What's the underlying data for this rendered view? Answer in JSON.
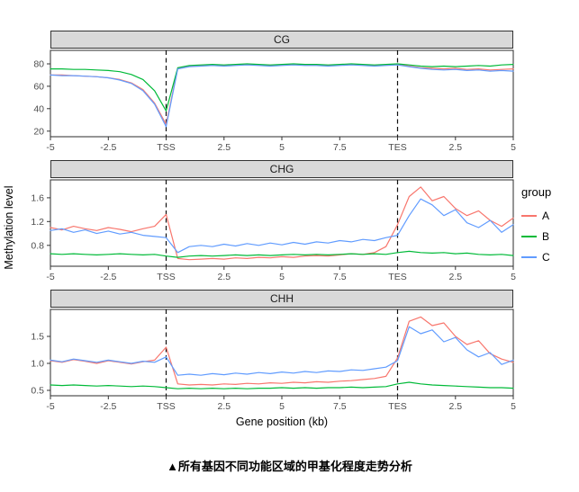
{
  "figure": {
    "caption": "▲所有基因不同功能区域的甲基化程度走势分析"
  },
  "chart_data": {
    "type": "line",
    "xlabel": "Gene position (kb)",
    "ylabel": "Methylation level",
    "x_domain": [
      0,
      20
    ],
    "x_step": 0.5,
    "grid": false,
    "x_ticks": [
      {
        "pos": 0,
        "label": "-5"
      },
      {
        "pos": 2.5,
        "label": "-2.5"
      },
      {
        "pos": 5,
        "label": "TSS"
      },
      {
        "pos": 7.5,
        "label": "2.5"
      },
      {
        "pos": 10,
        "label": "5"
      },
      {
        "pos": 12.5,
        "label": "7.5"
      },
      {
        "pos": 15,
        "label": "TES"
      },
      {
        "pos": 17.5,
        "label": "2.5"
      },
      {
        "pos": 20,
        "label": "5"
      }
    ],
    "vlines": [
      {
        "pos": 5,
        "label": "TSS"
      },
      {
        "pos": 15,
        "label": "TES"
      }
    ],
    "legend": {
      "title": "group",
      "position": "right",
      "items": [
        {
          "label": "A",
          "color": "#F8766D"
        },
        {
          "label": "B",
          "color": "#00BA38"
        },
        {
          "label": "C",
          "color": "#619CFF"
        }
      ]
    },
    "panels": [
      {
        "title": "CG",
        "ylim": [
          15,
          92
        ],
        "yticks": [
          {
            "pos": 20,
            "label": "20"
          },
          {
            "pos": 40,
            "label": "40"
          },
          {
            "pos": 60,
            "label": "60"
          },
          {
            "pos": 80,
            "label": "80"
          }
        ],
        "series": {
          "A": [
            70,
            70,
            69.5,
            69,
            68.5,
            67.5,
            66,
            63,
            57,
            45,
            26,
            76,
            78,
            78.5,
            79,
            78.5,
            79,
            79.5,
            79,
            78.5,
            79,
            79.5,
            79,
            79,
            78.5,
            79,
            79.5,
            79,
            78.5,
            79,
            79.5,
            78,
            76.5,
            76,
            75.5,
            76,
            75,
            75.5,
            74.5,
            75,
            75.5
          ],
          "B": [
            75.5,
            75.5,
            75,
            75,
            74.5,
            74,
            73,
            70.5,
            66,
            56,
            38,
            76.5,
            78.5,
            79,
            79.5,
            79,
            79.5,
            80,
            79.5,
            79,
            79.5,
            80,
            79.5,
            79.5,
            79,
            79.5,
            80,
            79.5,
            79,
            79.5,
            80,
            79,
            78,
            77.5,
            78,
            77.5,
            78,
            78.5,
            78,
            79,
            79.5
          ],
          "C": [
            70,
            69.5,
            69.5,
            69,
            68.5,
            67.5,
            65.5,
            62.5,
            56,
            44,
            24,
            75.5,
            77.5,
            78,
            78.5,
            78,
            78.5,
            79,
            78.5,
            78,
            78.5,
            79,
            78.5,
            78.5,
            78,
            78.5,
            79,
            78.5,
            78,
            78.5,
            79,
            77.5,
            76,
            75,
            74.5,
            75,
            74,
            74.5,
            73.5,
            74,
            73.5
          ]
        }
      },
      {
        "title": "CHG",
        "ylim": [
          0.45,
          1.9
        ],
        "yticks": [
          {
            "pos": 0.8,
            "label": "0.8"
          },
          {
            "pos": 1.2,
            "label": "1.2"
          },
          {
            "pos": 1.6,
            "label": "1.6"
          }
        ],
        "series": {
          "A": [
            1.1,
            1.06,
            1.12,
            1.08,
            1.05,
            1.1,
            1.07,
            1.03,
            1.08,
            1.12,
            1.32,
            0.58,
            0.56,
            0.57,
            0.58,
            0.57,
            0.59,
            0.58,
            0.6,
            0.59,
            0.61,
            0.6,
            0.62,
            0.63,
            0.62,
            0.64,
            0.66,
            0.65,
            0.68,
            0.78,
            1.15,
            1.62,
            1.78,
            1.55,
            1.62,
            1.42,
            1.3,
            1.38,
            1.22,
            1.12,
            1.26
          ],
          "B": [
            0.66,
            0.65,
            0.66,
            0.65,
            0.64,
            0.65,
            0.66,
            0.65,
            0.64,
            0.65,
            0.62,
            0.6,
            0.62,
            0.63,
            0.62,
            0.63,
            0.64,
            0.63,
            0.64,
            0.63,
            0.64,
            0.65,
            0.64,
            0.65,
            0.64,
            0.65,
            0.66,
            0.65,
            0.66,
            0.65,
            0.68,
            0.7,
            0.68,
            0.67,
            0.68,
            0.66,
            0.67,
            0.65,
            0.64,
            0.65,
            0.63
          ],
          "C": [
            1.05,
            1.08,
            1.02,
            1.06,
            1.0,
            1.04,
            0.99,
            1.02,
            0.97,
            0.95,
            0.93,
            0.68,
            0.78,
            0.8,
            0.78,
            0.82,
            0.79,
            0.83,
            0.8,
            0.84,
            0.81,
            0.85,
            0.82,
            0.86,
            0.84,
            0.88,
            0.86,
            0.9,
            0.88,
            0.93,
            0.97,
            1.3,
            1.58,
            1.48,
            1.3,
            1.4,
            1.18,
            1.1,
            1.22,
            1.02,
            1.15
          ]
        }
      },
      {
        "title": "CHH",
        "ylim": [
          0.4,
          2.0
        ],
        "yticks": [
          {
            "pos": 0.5,
            "label": "0.5"
          },
          {
            "pos": 1.0,
            "label": "1.0"
          },
          {
            "pos": 1.5,
            "label": "1.5"
          }
        ],
        "series": {
          "A": [
            1.05,
            1.02,
            1.07,
            1.04,
            1.0,
            1.05,
            1.02,
            0.99,
            1.03,
            1.06,
            1.3,
            0.62,
            0.6,
            0.61,
            0.6,
            0.62,
            0.61,
            0.63,
            0.62,
            0.64,
            0.63,
            0.65,
            0.64,
            0.66,
            0.65,
            0.67,
            0.68,
            0.7,
            0.72,
            0.76,
            1.1,
            1.78,
            1.86,
            1.7,
            1.75,
            1.5,
            1.35,
            1.42,
            1.18,
            1.08,
            1.02
          ],
          "B": [
            0.6,
            0.59,
            0.6,
            0.59,
            0.58,
            0.59,
            0.58,
            0.57,
            0.58,
            0.57,
            0.55,
            0.53,
            0.54,
            0.53,
            0.54,
            0.53,
            0.54,
            0.53,
            0.54,
            0.54,
            0.55,
            0.54,
            0.55,
            0.54,
            0.55,
            0.55,
            0.56,
            0.55,
            0.56,
            0.57,
            0.62,
            0.65,
            0.62,
            0.6,
            0.59,
            0.58,
            0.57,
            0.56,
            0.55,
            0.55,
            0.54
          ],
          "C": [
            1.06,
            1.03,
            1.08,
            1.05,
            1.02,
            1.06,
            1.03,
            1.0,
            1.04,
            1.02,
            1.12,
            0.78,
            0.8,
            0.78,
            0.81,
            0.79,
            0.82,
            0.8,
            0.83,
            0.81,
            0.84,
            0.82,
            0.85,
            0.83,
            0.86,
            0.85,
            0.88,
            0.87,
            0.9,
            0.93,
            1.05,
            1.68,
            1.55,
            1.62,
            1.4,
            1.48,
            1.25,
            1.12,
            1.2,
            0.98,
            1.06
          ]
        }
      }
    ]
  }
}
